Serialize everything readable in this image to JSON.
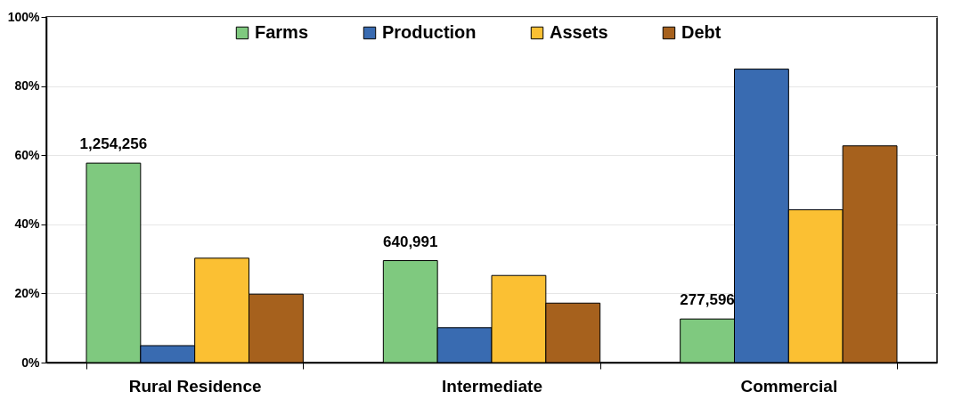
{
  "chart_data": {
    "type": "bar",
    "categories": [
      "Rural Residence",
      "Intermediate",
      "Commercial"
    ],
    "series": [
      {
        "name": "Farms",
        "color": "#7fc97f",
        "values": [
          57.7,
          29.5,
          12.6
        ]
      },
      {
        "name": "Production",
        "color": "#396bb1",
        "values": [
          4.9,
          10.1,
          84.9
        ]
      },
      {
        "name": "Assets",
        "color": "#fbc033",
        "values": [
          30.2,
          25.2,
          44.2
        ]
      },
      {
        "name": "Debt",
        "color": "#a6611d",
        "values": [
          19.8,
          17.2,
          62.7
        ]
      }
    ],
    "ylim": [
      0,
      100
    ],
    "yticks": [
      {
        "value": 0,
        "label": "0%"
      },
      {
        "value": 20,
        "label": "20%"
      },
      {
        "value": 40,
        "label": "40%"
      },
      {
        "value": 60,
        "label": "60%"
      },
      {
        "value": 80,
        "label": "80%"
      },
      {
        "value": 100,
        "label": "100%"
      }
    ],
    "grid": "y",
    "legend": "top",
    "annotations": [
      "1,254,256",
      "640,991",
      "277,596"
    ]
  }
}
